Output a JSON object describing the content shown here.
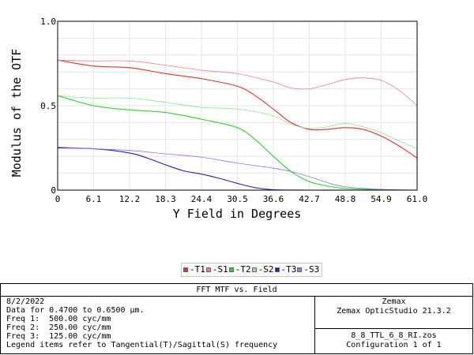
{
  "chart_data": {
    "type": "line",
    "xlabel": "Y Field in Degrees",
    "ylabel": "Modulus of the OTF",
    "xlim": [
      0,
      61.0
    ],
    "ylim": [
      0,
      1.0
    ],
    "x_ticks": [
      "0",
      "6.1",
      "12.2",
      "18.3",
      "24.4",
      "30.5",
      "36.6",
      "42.7",
      "48.8",
      "54.9",
      "61.0"
    ],
    "y_ticks": [
      "0",
      "0.5",
      "1.0"
    ],
    "grid": true,
    "series": [
      {
        "name": "T1",
        "color": "#e03030",
        "style": "solid",
        "x": [
          0,
          6.1,
          12.2,
          18.3,
          24.4,
          30.5,
          33.5,
          36.6,
          39.6,
          42.7,
          45.7,
          48.8,
          51.8,
          54.9,
          58.0,
          61.0
        ],
        "y": [
          0.77,
          0.735,
          0.725,
          0.69,
          0.66,
          0.615,
          0.56,
          0.48,
          0.4,
          0.36,
          0.36,
          0.37,
          0.36,
          0.32,
          0.26,
          0.19
        ]
      },
      {
        "name": "S1",
        "color": "#f08080",
        "style": "thin",
        "x": [
          0,
          6.1,
          12.2,
          18.3,
          24.4,
          30.5,
          36.6,
          39.6,
          42.7,
          45.7,
          48.8,
          51.8,
          54.9,
          58.0,
          61.0
        ],
        "y": [
          0.77,
          0.765,
          0.765,
          0.74,
          0.71,
          0.69,
          0.64,
          0.605,
          0.6,
          0.625,
          0.655,
          0.665,
          0.65,
          0.59,
          0.5
        ]
      },
      {
        "name": "T2",
        "color": "#30d030",
        "style": "solid",
        "x": [
          0,
          6.1,
          12.2,
          18.3,
          24.4,
          30.5,
          33.5,
          36.6,
          39.6,
          42.7,
          45.7,
          48.8,
          54.9,
          61.0
        ],
        "y": [
          0.56,
          0.5,
          0.475,
          0.46,
          0.42,
          0.37,
          0.3,
          0.2,
          0.11,
          0.05,
          0.025,
          0.01,
          0.002,
          0.0
        ]
      },
      {
        "name": "S2",
        "color": "#90e090",
        "style": "thin",
        "x": [
          0,
          6.1,
          12.2,
          18.3,
          24.4,
          30.5,
          36.6,
          39.6,
          42.7,
          45.7,
          48.8,
          51.8,
          54.9,
          58.0,
          61.0
        ],
        "y": [
          0.56,
          0.545,
          0.545,
          0.52,
          0.49,
          0.48,
          0.44,
          0.39,
          0.365,
          0.375,
          0.395,
          0.375,
          0.34,
          0.29,
          0.245
        ]
      },
      {
        "name": "T3",
        "color": "#2020c0",
        "style": "solid",
        "x": [
          0,
          6.1,
          12.2,
          15.2,
          18.3,
          21.3,
          24.4,
          27.4,
          30.5,
          33.5,
          36.6,
          42.7,
          48.8,
          54.9,
          61.0
        ],
        "y": [
          0.25,
          0.245,
          0.22,
          0.19,
          0.15,
          0.115,
          0.095,
          0.07,
          0.04,
          0.015,
          0.002,
          0.0,
          0.0,
          0.0,
          0.0
        ]
      },
      {
        "name": "S3",
        "color": "#8080e0",
        "style": "thin",
        "x": [
          0,
          6.1,
          12.2,
          18.3,
          24.4,
          30.5,
          36.6,
          39.6,
          42.7,
          45.7,
          48.8,
          54.9,
          61.0
        ],
        "y": [
          0.255,
          0.245,
          0.235,
          0.215,
          0.195,
          0.16,
          0.13,
          0.11,
          0.08,
          0.045,
          0.02,
          0.005,
          0.0
        ]
      }
    ]
  },
  "legend": {
    "items": [
      {
        "label": "T1",
        "color": "#e03030"
      },
      {
        "label": "S1",
        "color": "#f08080"
      },
      {
        "label": "T2",
        "color": "#30d030"
      },
      {
        "label": "S2",
        "color": "#90e090"
      },
      {
        "label": "T3",
        "color": "#2020c0"
      },
      {
        "label": "S3",
        "color": "#8080e0"
      }
    ]
  },
  "infobox": {
    "title": "FFT MTF vs. Field",
    "date": "8/2/2022",
    "data_range": "Data for 0.4700 to 0.6500 µm.",
    "freq1": "Freq 1:  500.00 cyc/mm",
    "freq2": "Freq 2:  250.00 cyc/mm",
    "freq3": "Freq 3:  125.00 cyc/mm",
    "legend_note": "Legend items refer to Tangential(T)/Sagittal(S) frequency",
    "company": "Zemax",
    "software": "Zemax OpticStudio 21.3.2",
    "filename": "8_8_TTL_6_8_RI.zos",
    "configuration": "Configuration 1 of 1"
  }
}
